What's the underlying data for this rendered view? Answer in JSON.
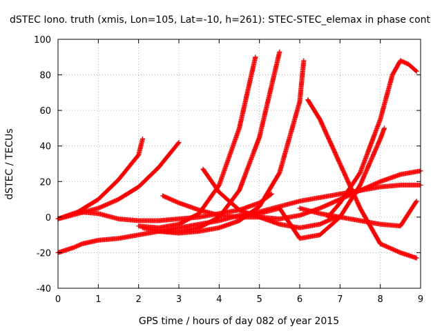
{
  "chart_data": {
    "type": "scatter",
    "title": "dSTEC Iono. truth (xmis, Lon=105, Lat=-10, h=261): STEC-STEC_elemax in phase cont",
    "xlabel": "GPS time / hours of day 082 of year 2015",
    "ylabel": "dSTEC  / TECUs",
    "xlim": [
      0,
      9
    ],
    "ylim": [
      -40,
      100
    ],
    "xticks": [
      "0",
      "1",
      "2",
      "3",
      "4",
      "5",
      "6",
      "7",
      "8",
      "9"
    ],
    "yticks": [
      "-40",
      "-20",
      "0",
      "20",
      "40",
      "60",
      "80",
      "100"
    ],
    "grid": true,
    "marker": "+",
    "color": "#ff0000",
    "series": [
      {
        "x": [
          0.0,
          0.5,
          1.0,
          1.5,
          2.0,
          2.1
        ],
        "y": [
          -1,
          3,
          10,
          21,
          35,
          44
        ]
      },
      {
        "x": [
          0.0,
          0.5,
          1.0,
          1.5,
          2.0,
          2.5,
          3.0
        ],
        "y": [
          -1,
          2,
          5,
          10,
          17,
          28,
          42
        ]
      },
      {
        "x": [
          0.0,
          0.4,
          0.6,
          0.8,
          1.0,
          1.5,
          2.0,
          2.5,
          3.0,
          3.5,
          4.0,
          4.5,
          5.0,
          5.5,
          6.0,
          6.5,
          7.0,
          7.5,
          8.0,
          8.5,
          9.0
        ],
        "y": [
          -20,
          -17,
          -15,
          -14,
          -13,
          -12,
          -10,
          -8,
          -6,
          -4,
          -2,
          1,
          3,
          6,
          9,
          11,
          13,
          15,
          17,
          18,
          18
        ]
      },
      {
        "x": [
          0.5,
          1.0,
          1.5,
          2.0,
          2.5,
          3.0,
          3.5,
          4.0,
          4.5,
          5.0,
          5.3
        ],
        "y": [
          3,
          2,
          -1,
          -2,
          -2,
          -1,
          0,
          2,
          4,
          8,
          13
        ]
      },
      {
        "x": [
          2.0,
          2.5,
          3.0,
          3.5,
          4.0,
          4.5,
          4.9
        ],
        "y": [
          -5,
          -6,
          -4,
          2,
          18,
          50,
          90
        ]
      },
      {
        "x": [
          2.1,
          2.5,
          3.0,
          3.5,
          4.0,
          4.5,
          5.0,
          5.5
        ],
        "y": [
          -6,
          -8,
          -8,
          -6,
          0,
          15,
          45,
          93
        ]
      },
      {
        "x": [
          2.5,
          3.0,
          3.5,
          4.0,
          4.5,
          5.0,
          5.5,
          6.0,
          6.1
        ],
        "y": [
          -8,
          -9,
          -8,
          -6,
          -2,
          6,
          25,
          65,
          88
        ]
      },
      {
        "x": [
          2.6,
          3.0,
          3.5,
          4.0,
          4.5,
          5.0,
          5.5,
          6.0,
          6.5,
          7.0,
          7.5,
          8.0,
          8.5,
          9.0
        ],
        "y": [
          12,
          8,
          4,
          1,
          0,
          0,
          -1,
          1,
          5,
          10,
          15,
          20,
          24,
          26
        ]
      },
      {
        "x": [
          3.6,
          4.0,
          4.5,
          5.0,
          5.5,
          6.0,
          6.5,
          6.9
        ],
        "y": [
          27,
          14,
          4,
          0,
          -4,
          -6,
          -4,
          0
        ]
      },
      {
        "x": [
          4.5,
          5.0,
          5.5,
          6.0,
          6.5,
          7.0,
          7.5,
          8.0,
          8.1
        ],
        "y": [
          0,
          2,
          5,
          -12,
          -10,
          0,
          18,
          44,
          50
        ]
      },
      {
        "x": [
          6.0,
          6.5,
          7.0,
          7.5,
          8.0,
          8.5,
          8.9
        ],
        "y": [
          5,
          2,
          0,
          -2,
          -4,
          -5,
          9
        ]
      },
      {
        "x": [
          6.2,
          6.5,
          7.0,
          7.5,
          8.0,
          8.5,
          8.9
        ],
        "y": [
          66,
          55,
          30,
          5,
          -15,
          -20,
          -23
        ]
      },
      {
        "x": [
          6.7,
          7.0,
          7.5,
          8.0,
          8.3,
          8.5,
          8.7,
          8.9
        ],
        "y": [
          0,
          8,
          25,
          55,
          80,
          88,
          86,
          82
        ]
      }
    ]
  }
}
